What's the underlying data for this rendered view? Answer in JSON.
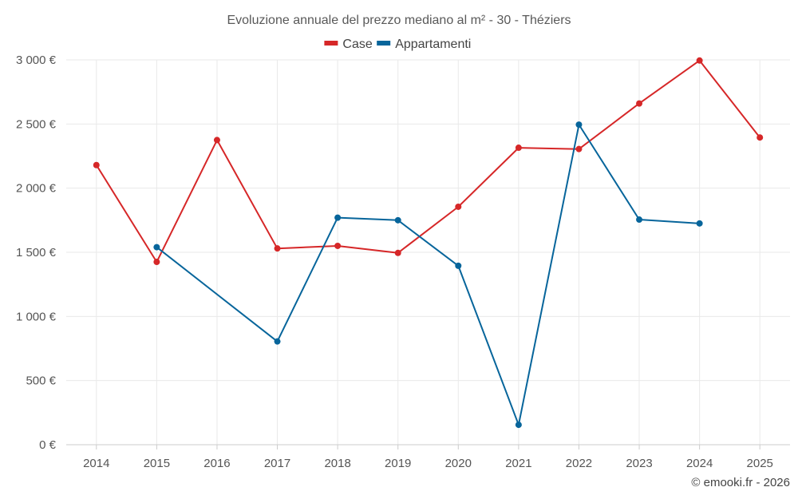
{
  "chart_data": {
    "type": "line",
    "title": "Evoluzione annuale del prezzo mediano al m² - 30 - Théziers",
    "xlabel": "",
    "ylabel": "",
    "categories": [
      "2014",
      "2015",
      "2016",
      "2017",
      "2018",
      "2019",
      "2020",
      "2021",
      "2022",
      "2023",
      "2024",
      "2025"
    ],
    "ylim": [
      0,
      3000
    ],
    "yticks": [
      0,
      500,
      1000,
      1500,
      2000,
      2500,
      3000
    ],
    "ytick_labels": [
      "0 €",
      "500 €",
      "1 000 €",
      "1 500 €",
      "2 000 €",
      "2 500 €",
      "3 000 €"
    ],
    "grid": true,
    "legend_position": "top-center",
    "series": [
      {
        "name": "Case",
        "color": "#d62728",
        "values": [
          2180,
          1425,
          2375,
          1530,
          1550,
          1495,
          1855,
          2315,
          2305,
          2660,
          2995,
          2395
        ]
      },
      {
        "name": "Appartamenti",
        "color": "#07659b",
        "values": [
          null,
          1540,
          null,
          805,
          1770,
          1750,
          1395,
          155,
          2495,
          1755,
          1725,
          null
        ]
      }
    ]
  },
  "credit": "© emooki.fr - 2026"
}
